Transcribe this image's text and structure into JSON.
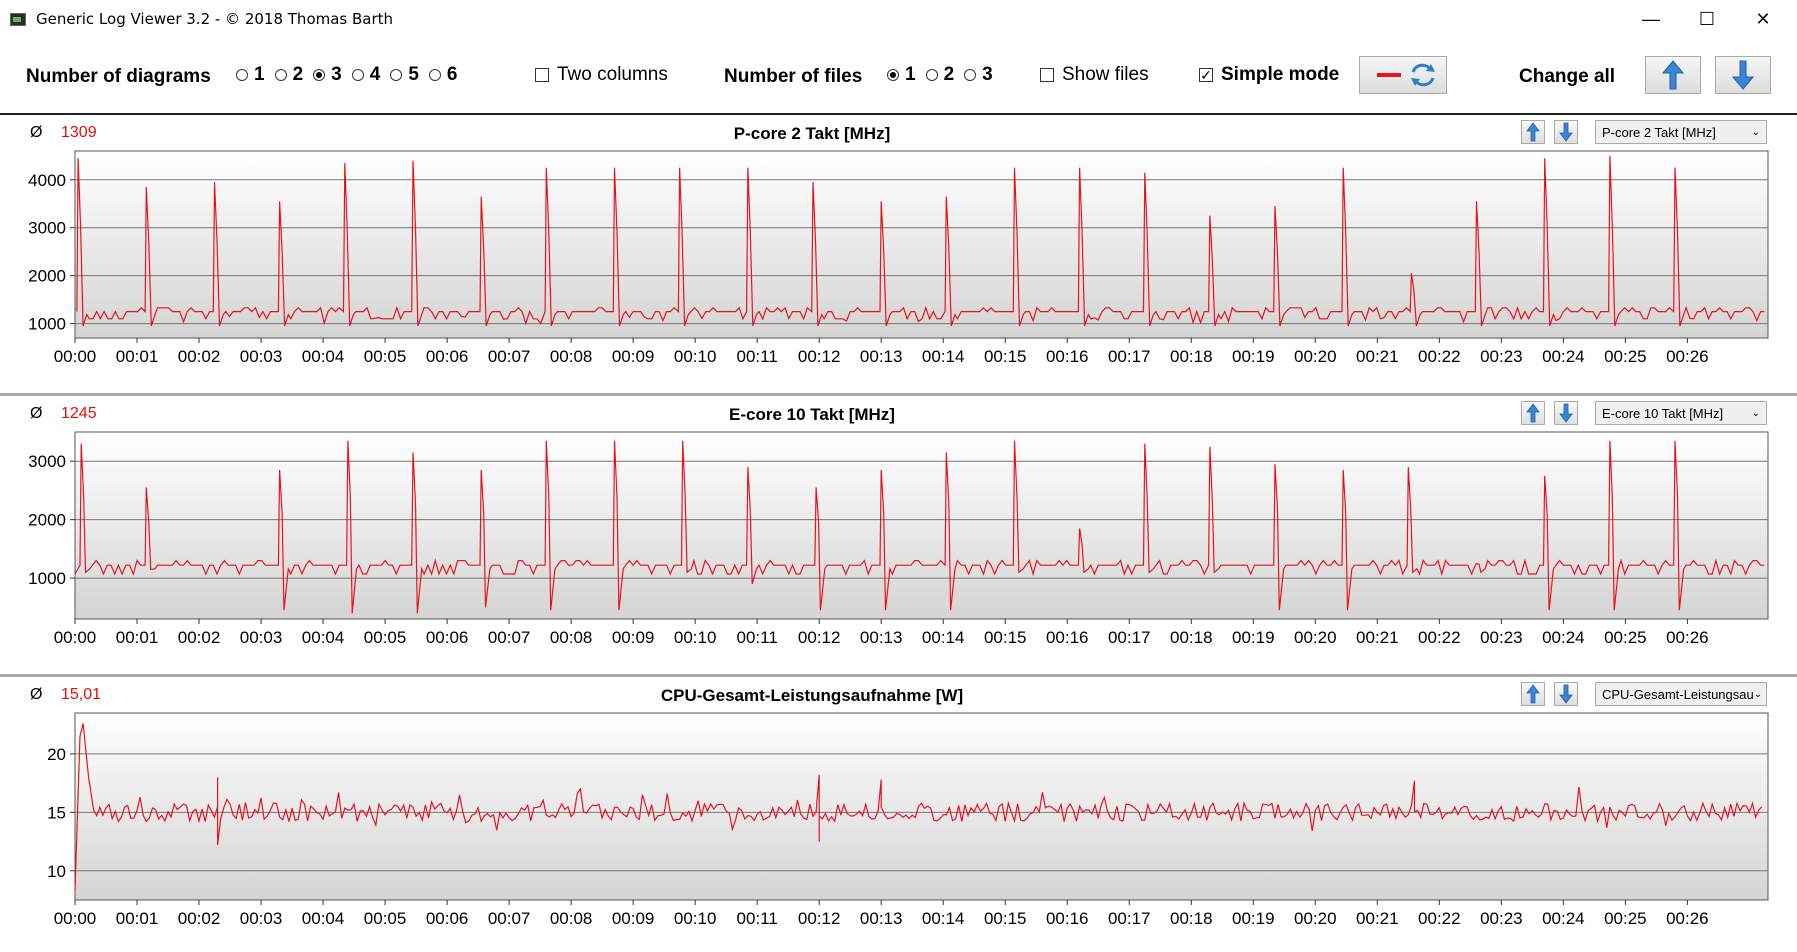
{
  "window": {
    "title": "Generic Log Viewer 3.2 - © 2018 Thomas Barth"
  },
  "toolbar": {
    "num_diagrams_label": "Number of diagrams",
    "diagram_options": [
      "1",
      "2",
      "3",
      "4",
      "5",
      "6"
    ],
    "diagram_selected": "3",
    "two_columns_label": "Two columns",
    "num_files_label": "Number of files",
    "file_options": [
      "1",
      "2",
      "3"
    ],
    "file_selected": "1",
    "show_files_label": "Show files",
    "simple_mode_label": "Simple mode",
    "change_all_label": "Change all"
  },
  "colors": {
    "series": "#e8141c",
    "accent_arrow": "#3a86d6"
  },
  "icons": {
    "minimize": "minimize-icon",
    "maximize": "maximize-icon",
    "close": "close-icon",
    "arrow_up": "arrow-up-icon",
    "arrow_down": "arrow-down-icon",
    "refresh": "refresh-icon"
  },
  "panels": [
    {
      "avg_symbol": "Ø",
      "avg_value": "1309",
      "title": "P-core 2 Takt [MHz]",
      "select_value": "P-core 2 Takt [MHz]"
    },
    {
      "avg_symbol": "Ø",
      "avg_value": "1245",
      "title": "E-core 10 Takt [MHz]",
      "select_value": "E-core 10 Takt [MHz]"
    },
    {
      "avg_symbol": "Ø",
      "avg_value": "15,01",
      "title": "CPU-Gesamt-Leistungsaufnahme [W]",
      "select_value": "CPU-Gesamt-Leistungsau"
    }
  ],
  "chart_data": [
    {
      "type": "line",
      "title": "P-core 2 Takt [MHz]",
      "x_ticks": [
        "00:00",
        "00:01",
        "00:02",
        "00:03",
        "00:04",
        "00:05",
        "00:06",
        "00:07",
        "00:08",
        "00:09",
        "00:10",
        "00:11",
        "00:12",
        "00:13",
        "00:14",
        "00:15",
        "00:16",
        "00:17",
        "00:18",
        "00:19",
        "00:20",
        "00:21",
        "00:22",
        "00:23",
        "00:24",
        "00:25",
        "00:26"
      ],
      "y_ticks": [
        1000,
        2000,
        3000,
        4000
      ],
      "ylim": [
        700,
        4600
      ],
      "xlim_min": [
        0,
        27.3
      ],
      "baseline": 1250,
      "spikes_at_min": [
        0.05,
        1.15,
        2.25,
        3.3,
        4.35,
        5.45,
        6.55,
        7.6,
        8.7,
        9.75,
        10.85,
        11.9,
        13.0,
        14.05,
        15.15,
        16.2,
        17.25,
        18.3,
        19.35,
        20.45,
        21.55,
        22.6,
        23.7,
        24.75,
        25.8
      ],
      "spike_peaks": [
        4450,
        3850,
        3950,
        3550,
        4350,
        4400,
        3650,
        4250,
        4250,
        4250,
        4250,
        3950,
        3550,
        3650,
        4250,
        4250,
        4150,
        3250,
        3450,
        4250,
        2050,
        3550,
        4450,
        4500,
        4250
      ],
      "grid": true
    },
    {
      "type": "line",
      "title": "E-core 10 Takt [MHz]",
      "x_ticks": [
        "00:00",
        "00:01",
        "00:02",
        "00:03",
        "00:04",
        "00:05",
        "00:06",
        "00:07",
        "00:08",
        "00:09",
        "00:10",
        "00:11",
        "00:12",
        "00:13",
        "00:14",
        "00:15",
        "00:16",
        "00:17",
        "00:18",
        "00:19",
        "00:20",
        "00:21",
        "00:22",
        "00:23",
        "00:24",
        "00:25",
        "00:26"
      ],
      "y_ticks": [
        1000,
        2000,
        3000
      ],
      "ylim": [
        300,
        3500
      ],
      "xlim_min": [
        0,
        27.3
      ],
      "baseline": 1220,
      "spikes_at_min": [
        0.1,
        1.15,
        3.3,
        4.4,
        5.45,
        6.55,
        7.6,
        8.7,
        9.8,
        10.85,
        11.95,
        13.0,
        14.05,
        15.15,
        16.2,
        17.25,
        18.3,
        19.35,
        20.45,
        21.5,
        22.6,
        23.7,
        24.75,
        25.8
      ],
      "spike_peaks": [
        3300,
        2550,
        2850,
        3350,
        3150,
        2850,
        3350,
        3350,
        3350,
        2900,
        2550,
        2850,
        3150,
        3350,
        1850,
        3300,
        3250,
        2950,
        2850,
        2900,
        1250,
        2750,
        3350,
        3350
      ],
      "spike_dips": [
        1100,
        1150,
        450,
        400,
        400,
        500,
        450,
        450,
        1100,
        900,
        450,
        450,
        450,
        1100,
        1100,
        1100,
        1100,
        450,
        450,
        1100,
        1100,
        450,
        450,
        450
      ],
      "grid": true
    },
    {
      "type": "line",
      "title": "CPU-Gesamt-Leistungsaufnahme [W]",
      "x_ticks": [
        "00:00",
        "00:01",
        "00:02",
        "00:03",
        "00:04",
        "00:05",
        "00:06",
        "00:07",
        "00:08",
        "00:09",
        "00:10",
        "00:11",
        "00:12",
        "00:13",
        "00:14",
        "00:15",
        "00:16",
        "00:17",
        "00:18",
        "00:19",
        "00:20",
        "00:21",
        "00:22",
        "00:23",
        "00:24",
        "00:25",
        "00:26"
      ],
      "y_ticks": [
        10,
        15,
        20
      ],
      "ylim": [
        7.5,
        23.5
      ],
      "xlim_min": [
        0,
        27.3
      ],
      "baseline": 15.0,
      "start_values": [
        8.3,
        21.5,
        22.6,
        15.2
      ],
      "notable_points_min": [
        [
          2.3,
          18.0
        ],
        [
          2.3,
          12.2
        ],
        [
          12.0,
          18.2
        ],
        [
          12.0,
          12.5
        ],
        [
          13.0,
          17.8
        ],
        [
          21.6,
          17.7
        ]
      ],
      "grid": true
    }
  ]
}
